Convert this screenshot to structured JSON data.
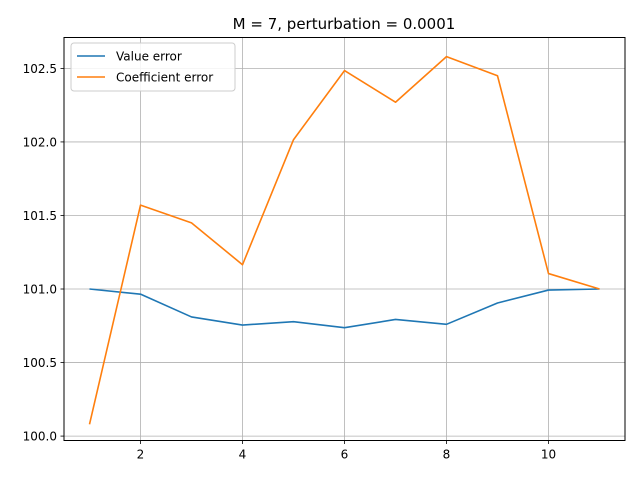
{
  "chart_data": {
    "type": "line",
    "title": "M = 7, perturbation = 0.0001",
    "xlabel": "",
    "ylabel": "",
    "xlim": [
      0.5,
      11.5
    ],
    "ylim": [
      99.97,
      102.71
    ],
    "xticks": [
      2,
      4,
      6,
      8,
      10
    ],
    "yticks": [
      100.0,
      100.5,
      101.0,
      101.5,
      102.0,
      102.5
    ],
    "xtick_labels": [
      "2",
      "4",
      "6",
      "8",
      "10"
    ],
    "ytick_labels": [
      "100.0",
      "100.5",
      "101.0",
      "101.5",
      "102.0",
      "102.5"
    ],
    "grid": true,
    "legend_position": "upper-left",
    "x": [
      1,
      2,
      3,
      4,
      5,
      6,
      7,
      8,
      9,
      10,
      11
    ],
    "series": [
      {
        "name": "Value error",
        "color": "#1f77b4",
        "values": [
          101.0,
          100.965,
          100.81,
          100.755,
          100.778,
          100.737,
          100.793,
          100.76,
          100.905,
          100.993,
          101.0
        ]
      },
      {
        "name": "Coefficient error",
        "color": "#ff7f0e",
        "values": [
          100.08,
          101.57,
          101.45,
          101.165,
          102.015,
          102.485,
          102.27,
          102.58,
          102.45,
          101.105,
          101.0
        ]
      }
    ]
  }
}
